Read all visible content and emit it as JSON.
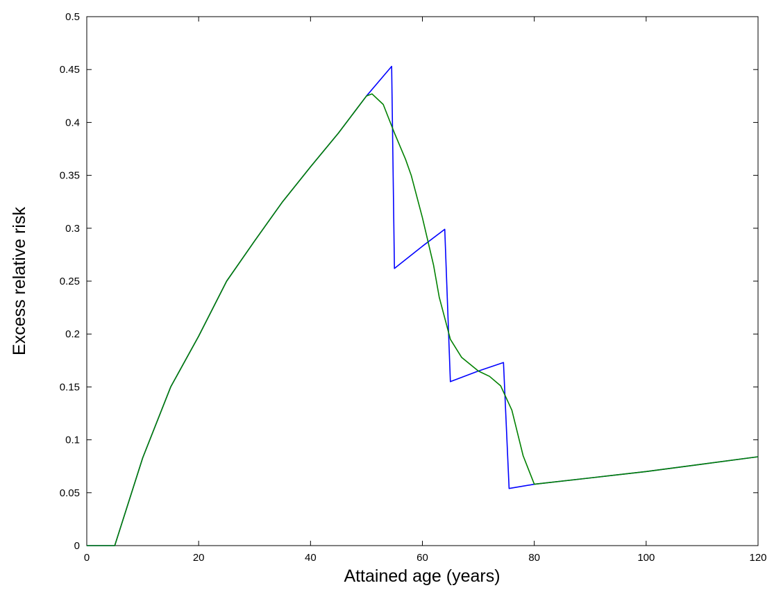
{
  "chart_data": {
    "type": "line",
    "title": "",
    "xlabel": "Attained age (years)",
    "ylabel": "Excess relative risk",
    "xlim": [
      0,
      120
    ],
    "ylim": [
      0,
      0.5
    ],
    "xticks": [
      0,
      20,
      40,
      60,
      80,
      100,
      120
    ],
    "yticks": [
      0,
      0.05,
      0.1,
      0.15,
      0.2,
      0.25,
      0.3,
      0.35,
      0.4,
      0.45,
      0.5
    ],
    "grid": false,
    "legend": "none",
    "series": [
      {
        "color": "#0000ff",
        "x": [
          0,
          5,
          10,
          15,
          20,
          25,
          30,
          35,
          40,
          45,
          50,
          54.5,
          55,
          60,
          64,
          65,
          70,
          74.5,
          75.5,
          80,
          90,
          100,
          110,
          120
        ],
        "y": [
          0,
          0,
          0.083,
          0.15,
          0.198,
          0.25,
          0.288,
          0.325,
          0.358,
          0.39,
          0.425,
          0.453,
          0.262,
          0.283,
          0.299,
          0.155,
          0.165,
          0.173,
          0.054,
          0.058,
          0.064,
          0.07,
          0.077,
          0.084
        ]
      },
      {
        "color": "#008000",
        "x": [
          0,
          5,
          10,
          15,
          20,
          25,
          30,
          35,
          40,
          45,
          50,
          51,
          53,
          55,
          57,
          58,
          60,
          62,
          63,
          65,
          67,
          70,
          72,
          74,
          76,
          78,
          80,
          90,
          100,
          110,
          120
        ],
        "y": [
          0,
          0,
          0.083,
          0.15,
          0.198,
          0.25,
          0.288,
          0.325,
          0.358,
          0.39,
          0.425,
          0.427,
          0.417,
          0.39,
          0.365,
          0.35,
          0.31,
          0.265,
          0.235,
          0.195,
          0.178,
          0.165,
          0.16,
          0.151,
          0.128,
          0.085,
          0.058,
          0.064,
          0.07,
          0.077,
          0.084
        ]
      }
    ]
  }
}
